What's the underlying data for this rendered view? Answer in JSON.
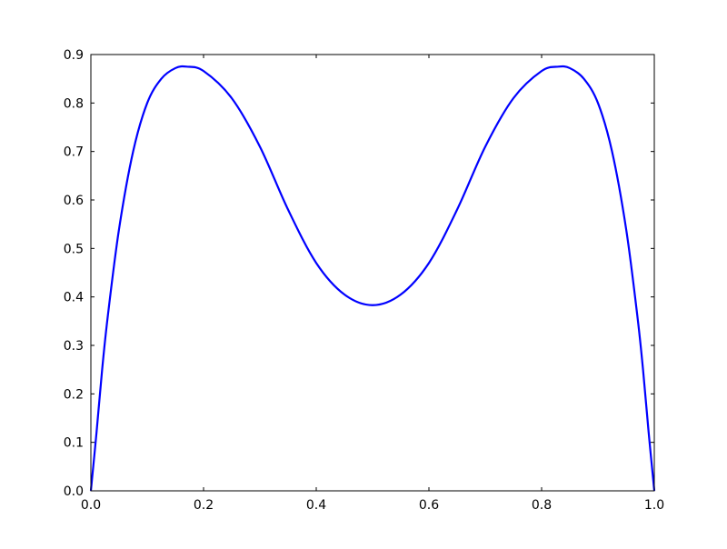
{
  "chart_data": {
    "type": "line",
    "title": "",
    "xlabel": "",
    "ylabel": "",
    "xlim": [
      0.0,
      1.0
    ],
    "ylim": [
      0.0,
      0.9
    ],
    "grid": false,
    "xticks": [
      "0.0",
      "0.2",
      "0.4",
      "0.6",
      "0.8",
      "1.0"
    ],
    "yticks": [
      "0.0",
      "0.1",
      "0.2",
      "0.3",
      "0.4",
      "0.5",
      "0.6",
      "0.7",
      "0.8",
      "0.9"
    ],
    "series": [
      {
        "color": "#0000ff",
        "x": [
          0.0,
          0.01,
          0.02,
          0.03,
          0.05,
          0.075,
          0.1,
          0.125,
          0.15,
          0.17,
          0.2,
          0.25,
          0.3,
          0.35,
          0.4,
          0.45,
          0.5,
          0.55,
          0.6,
          0.65,
          0.7,
          0.75,
          0.8,
          0.83,
          0.85,
          0.875,
          0.9,
          0.925,
          0.95,
          0.97,
          0.98,
          0.99,
          1.0
        ],
        "y": [
          0.0,
          0.12,
          0.25,
          0.36,
          0.54,
          0.7,
          0.8,
          0.85,
          0.872,
          0.875,
          0.866,
          0.81,
          0.71,
          0.58,
          0.47,
          0.405,
          0.383,
          0.405,
          0.47,
          0.58,
          0.71,
          0.81,
          0.866,
          0.875,
          0.872,
          0.85,
          0.8,
          0.7,
          0.54,
          0.36,
          0.25,
          0.12,
          0.0
        ]
      }
    ]
  }
}
